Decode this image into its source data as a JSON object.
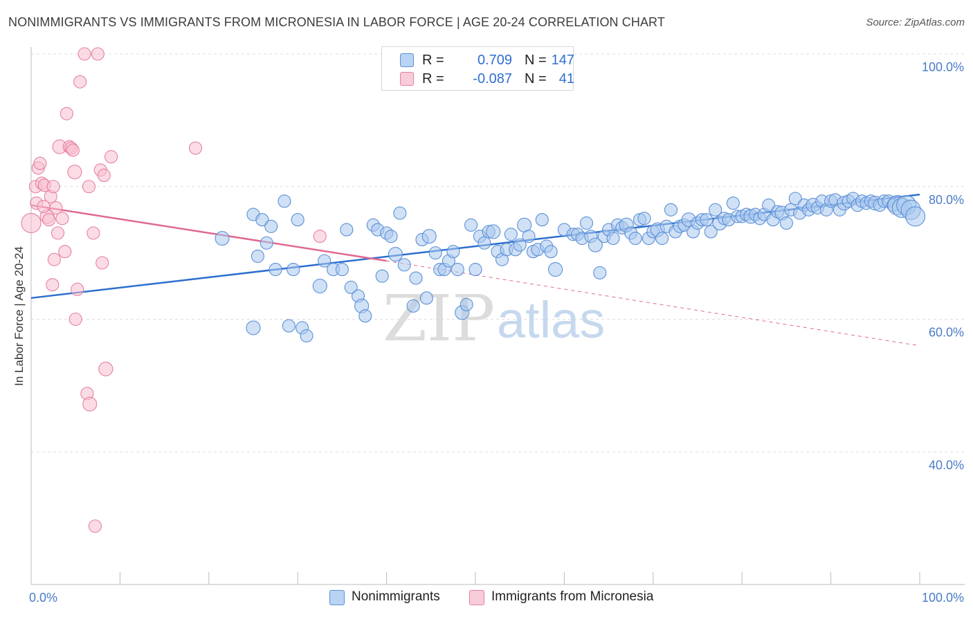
{
  "title": "NONIMMIGRANTS VS IMMIGRANTS FROM MICRONESIA IN LABOR FORCE | AGE 20-24 CORRELATION CHART",
  "source": "Source: ZipAtlas.com",
  "watermark": {
    "zip": "ZIP",
    "atlas": "atlas"
  },
  "legend": {
    "rows": [
      {
        "r_label": "R =",
        "r_value": "0.709",
        "n_label": "N =",
        "n_value": "147"
      },
      {
        "r_label": "R =",
        "r_value": "-0.087",
        "n_label": "N =",
        "n_value": "41"
      }
    ]
  },
  "bottom_legend": [
    "Nonimmigrants",
    "Immigrants from Micronesia"
  ],
  "colors": {
    "blue_fill": "#a9c8ee",
    "blue_stroke": "#5b8fd6",
    "blue_line": "#2b6fd0",
    "pink_fill": "#f7bfd0",
    "pink_stroke": "#e57fa0",
    "pink_line": "#e06890",
    "grid": "#dddddd",
    "tick_text": "#4a7cc7"
  },
  "chart_data": {
    "type": "scatter",
    "title": "NONIMMIGRANTS VS IMMIGRANTS FROM MICRONESIA IN LABOR FORCE | AGE 20-24 CORRELATION CHART",
    "xlabel": "",
    "ylabel": "In Labor Force | Age 20-24",
    "xlim": [
      0,
      100
    ],
    "ylim": [
      20,
      100
    ],
    "x_tick_labels": [
      {
        "x": 0,
        "label": "0.0%"
      },
      {
        "x": 100,
        "label": "100.0%"
      }
    ],
    "y_tick_labels": [
      {
        "y": 100,
        "label": "100.0%"
      },
      {
        "y": 80,
        "label": "80.0%"
      },
      {
        "y": 60,
        "label": "60.0%"
      },
      {
        "y": 40,
        "label": "40.0%"
      }
    ],
    "y_gridlines": [
      100,
      80,
      60,
      40
    ],
    "grid": true,
    "legend_position": "top-center",
    "series": [
      {
        "name": "Nonimmigrants",
        "color": "#5b8fd6",
        "trend": {
          "x": [
            0,
            100
          ],
          "y": [
            63.2,
            78.8
          ],
          "style": "solid"
        },
        "points": [
          [
            21.5,
            72.2
          ],
          [
            25,
            75.8
          ],
          [
            25.5,
            69.5
          ],
          [
            26,
            75
          ],
          [
            26.5,
            71.5
          ],
          [
            27,
            74
          ],
          [
            27.5,
            67.5
          ],
          [
            25,
            58.7
          ],
          [
            28.5,
            77.8
          ],
          [
            29,
            59
          ],
          [
            29.5,
            67.5
          ],
          [
            30,
            75
          ],
          [
            30.5,
            58.7
          ],
          [
            31,
            57.5
          ],
          [
            32.5,
            65
          ],
          [
            33,
            68.8
          ],
          [
            34,
            67.5
          ],
          [
            35,
            67.5
          ],
          [
            35.5,
            73.5
          ],
          [
            36,
            64.8
          ],
          [
            36.8,
            63.5
          ],
          [
            37.2,
            62
          ],
          [
            37.6,
            60.5
          ],
          [
            38.5,
            74.2
          ],
          [
            39,
            73.5
          ],
          [
            39.5,
            66.5
          ],
          [
            40,
            73
          ],
          [
            40.5,
            72.5
          ],
          [
            41,
            69.8
          ],
          [
            41.5,
            76
          ],
          [
            42,
            68.2
          ],
          [
            43,
            62
          ],
          [
            43.3,
            66.2
          ],
          [
            44,
            72
          ],
          [
            44.5,
            63.2
          ],
          [
            44.8,
            72.5
          ],
          [
            45.5,
            70
          ],
          [
            46,
            67.5
          ],
          [
            46.5,
            67.5
          ],
          [
            47,
            68.8
          ],
          [
            47.5,
            70.2
          ],
          [
            48,
            67.5
          ],
          [
            48.5,
            61
          ],
          [
            49,
            62.2
          ],
          [
            49.5,
            74.2
          ],
          [
            50,
            67.5
          ],
          [
            50.5,
            72.5
          ],
          [
            51,
            71.5
          ],
          [
            51.5,
            73.2
          ],
          [
            52,
            73.2
          ],
          [
            52.5,
            70.2
          ],
          [
            53,
            69
          ],
          [
            53.5,
            70.5
          ],
          [
            54,
            72.8
          ],
          [
            54.5,
            70.5
          ],
          [
            55,
            71.2
          ],
          [
            55.5,
            74.2
          ],
          [
            56,
            72.5
          ],
          [
            56.5,
            70.2
          ],
          [
            57,
            70.5
          ],
          [
            57.5,
            75
          ],
          [
            58,
            71
          ],
          [
            58.5,
            70.2
          ],
          [
            59,
            67.5
          ],
          [
            60,
            73.5
          ],
          [
            61,
            72.8
          ],
          [
            61.5,
            72.8
          ],
          [
            62,
            72.2
          ],
          [
            62.5,
            74.5
          ],
          [
            63,
            72.5
          ],
          [
            63.5,
            71.2
          ],
          [
            64,
            67
          ],
          [
            64.5,
            72.5
          ],
          [
            65,
            73.5
          ],
          [
            65.5,
            72.2
          ],
          [
            66,
            74.2
          ],
          [
            66.5,
            73.8
          ],
          [
            67,
            74.2
          ],
          [
            67.5,
            73
          ],
          [
            68,
            72.2
          ],
          [
            68.5,
            75
          ],
          [
            69,
            75.2
          ],
          [
            69.5,
            72.2
          ],
          [
            70,
            73.2
          ],
          [
            70.5,
            73.5
          ],
          [
            71,
            72.2
          ],
          [
            71.5,
            74
          ],
          [
            72,
            76.5
          ],
          [
            72.5,
            73.2
          ],
          [
            73,
            74
          ],
          [
            73.5,
            74.2
          ],
          [
            74,
            75
          ],
          [
            74.5,
            73.2
          ],
          [
            75,
            74.5
          ],
          [
            75.5,
            75
          ],
          [
            76,
            75
          ],
          [
            76.5,
            73.2
          ],
          [
            77,
            76.5
          ],
          [
            77.5,
            74.5
          ],
          [
            78,
            75.2
          ],
          [
            78.5,
            75
          ],
          [
            79,
            77.5
          ],
          [
            79.5,
            75.5
          ],
          [
            80,
            75.5
          ],
          [
            80.5,
            75.8
          ],
          [
            81,
            75.5
          ],
          [
            81.5,
            75.8
          ],
          [
            82,
            75.2
          ],
          [
            82.5,
            75.8
          ],
          [
            83,
            77.2
          ],
          [
            83.5,
            75
          ],
          [
            84,
            76.2
          ],
          [
            84.5,
            76
          ],
          [
            85,
            74.5
          ],
          [
            85.5,
            76.5
          ],
          [
            86,
            78.2
          ],
          [
            86.5,
            76
          ],
          [
            87,
            77.2
          ],
          [
            87.5,
            76.5
          ],
          [
            88,
            77.2
          ],
          [
            88.5,
            76.8
          ],
          [
            89,
            77.8
          ],
          [
            89.5,
            76.5
          ],
          [
            90,
            77.8
          ],
          [
            90.5,
            78
          ],
          [
            91,
            76.5
          ],
          [
            91.5,
            77.5
          ],
          [
            92,
            77.8
          ],
          [
            92.5,
            78.2
          ],
          [
            93,
            77.2
          ],
          [
            93.5,
            77.8
          ],
          [
            94,
            77.5
          ],
          [
            94.5,
            77.8
          ],
          [
            95,
            77.5
          ],
          [
            95.5,
            77.2
          ],
          [
            96,
            77.8
          ],
          [
            96.5,
            77.8
          ],
          [
            97,
            77.2
          ],
          [
            97.5,
            77.2
          ],
          [
            98,
            76.8
          ],
          [
            98.5,
            77.2
          ],
          [
            99,
            76.5
          ],
          [
            99.5,
            75.5
          ]
        ]
      },
      {
        "name": "Immigrants from Micronesia",
        "color": "#e57fa0",
        "trend": {
          "x": [
            0,
            40,
            100
          ],
          "y": [
            77.2,
            68.8,
            56
          ],
          "style": "solid-then-dashed"
        },
        "points": [
          [
            0,
            74.5
          ],
          [
            0.5,
            80
          ],
          [
            0.6,
            77.5
          ],
          [
            0.8,
            82.8
          ],
          [
            1,
            83.5
          ],
          [
            1.2,
            80.5
          ],
          [
            1.5,
            80.2
          ],
          [
            1.8,
            75.5
          ],
          [
            2,
            75
          ],
          [
            2.2,
            78.5
          ],
          [
            2.4,
            65.2
          ],
          [
            2.5,
            80
          ],
          [
            2.8,
            76.8
          ],
          [
            3,
            73
          ],
          [
            3.2,
            86
          ],
          [
            3.5,
            75.2
          ],
          [
            3.8,
            70.2
          ],
          [
            4,
            91
          ],
          [
            4.3,
            86
          ],
          [
            4.5,
            85.8
          ],
          [
            4.7,
            85.5
          ],
          [
            4.9,
            82.2
          ],
          [
            5,
            60
          ],
          [
            5.2,
            64.5
          ],
          [
            6,
            100
          ],
          [
            5.5,
            95.8
          ],
          [
            6.3,
            48.8
          ],
          [
            6.5,
            80
          ],
          [
            6.6,
            47.2
          ],
          [
            7,
            73
          ],
          [
            7.2,
            28.8
          ],
          [
            7.5,
            100
          ],
          [
            7.8,
            82.5
          ],
          [
            8,
            68.5
          ],
          [
            8.2,
            81.7
          ],
          [
            8.4,
            52.5
          ],
          [
            9,
            84.5
          ],
          [
            18.5,
            85.8
          ],
          [
            32.5,
            72.5
          ],
          [
            1.4,
            77
          ],
          [
            2.6,
            69
          ]
        ]
      }
    ]
  }
}
